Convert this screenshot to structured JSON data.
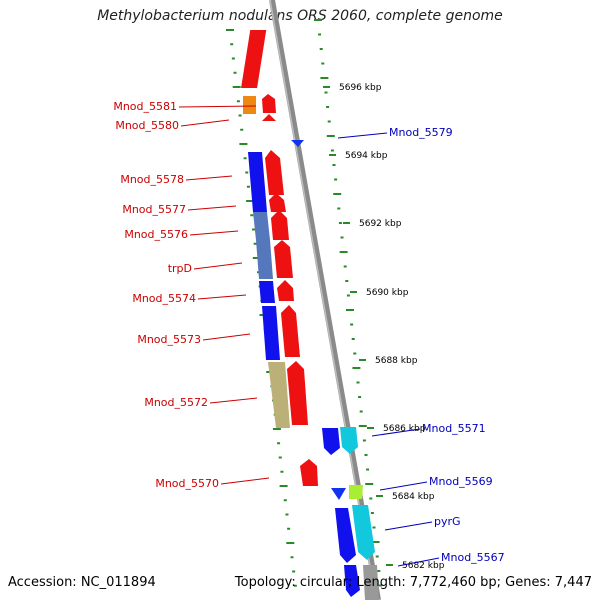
{
  "title": "Methylobacterium nodulans ORS 2060, complete genome",
  "footer": {
    "accession": "Accession: NC_011894",
    "stats": "Topology: circular; Length: 7,772,460 bp; Genes: 7,447"
  },
  "colors": {
    "backbone": "#8a8a8a",
    "strand_line": "#2a8a2a",
    "red_gene": "#ee1111",
    "blue_gene": "#1111ee",
    "steel_gene": "#5577bb",
    "khaki_gene": "#bbb077",
    "cyan_gene": "#11c8dd",
    "orange_gene": "#ee8811",
    "lime_gene": "#aaee33",
    "red_label": "#cc0000",
    "blue_label": "#0000bb"
  },
  "kbp_ticks": [
    {
      "label": "5696 kbp"
    },
    {
      "label": "5694 kbp"
    },
    {
      "label": "5692 kbp"
    },
    {
      "label": "5690 kbp"
    },
    {
      "label": "5688 kbp"
    },
    {
      "label": "5686 kbp"
    },
    {
      "label": "5684 kbp"
    },
    {
      "label": "5682 kbp"
    }
  ],
  "left_labels": [
    {
      "text": "Mnod_5581"
    },
    {
      "text": "Mnod_5580"
    },
    {
      "text": "Mnod_5578"
    },
    {
      "text": "Mnod_5577"
    },
    {
      "text": "Mnod_5576"
    },
    {
      "text": "trpD"
    },
    {
      "text": "Mnod_5574"
    },
    {
      "text": "Mnod_5573"
    },
    {
      "text": "Mnod_5572"
    },
    {
      "text": "Mnod_5570"
    }
  ],
  "right_labels": [
    {
      "text": "Mnod_5579"
    },
    {
      "text": "Mnod_5571"
    },
    {
      "text": "Mnod_5569"
    },
    {
      "text": "pyrG"
    },
    {
      "text": "Mnod_5567"
    }
  ]
}
